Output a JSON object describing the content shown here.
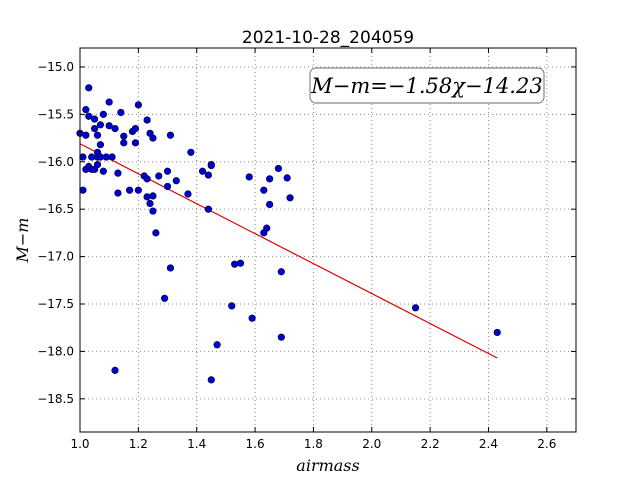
{
  "chart_data": {
    "type": "scatter",
    "title": "2021-10-28_204059",
    "xlabel": "airmass",
    "ylabel": "M−m",
    "xlim": [
      1.0,
      2.7
    ],
    "ylim": [
      -18.85,
      -14.8
    ],
    "grid": true,
    "x_ticks": [
      1.0,
      1.2,
      1.4,
      1.6,
      1.8,
      2.0,
      2.2,
      2.4,
      2.6
    ],
    "x_tick_labels": [
      "1.0",
      "1.2",
      "1.4",
      "1.6",
      "1.8",
      "2.0",
      "2.2",
      "2.4",
      "2.6"
    ],
    "y_ticks": [
      -15.0,
      -15.5,
      -16.0,
      -16.5,
      -17.0,
      -17.5,
      -18.0,
      -18.5
    ],
    "y_tick_labels": [
      "−15.0",
      "−15.5",
      "−16.0",
      "−16.5",
      "−17.0",
      "−17.5",
      "−18.0",
      "−18.5"
    ],
    "annotation": {
      "text": "M−m=−1.58χ−14.23",
      "position": "top-right"
    },
    "colors": {
      "points": "#0000cc",
      "fit_line": "#e00000"
    },
    "fit": {
      "slope": -1.58,
      "intercept": -14.23,
      "x_range": [
        1.0,
        2.43
      ]
    },
    "points": [
      {
        "x": 1.0,
        "y": -15.7
      },
      {
        "x": 1.01,
        "y": -16.3
      },
      {
        "x": 1.01,
        "y": -15.95
      },
      {
        "x": 1.02,
        "y": -15.72
      },
      {
        "x": 1.02,
        "y": -16.08
      },
      {
        "x": 1.02,
        "y": -15.45
      },
      {
        "x": 1.03,
        "y": -15.22
      },
      {
        "x": 1.03,
        "y": -15.52
      },
      {
        "x": 1.03,
        "y": -16.05
      },
      {
        "x": 1.04,
        "y": -15.95
      },
      {
        "x": 1.04,
        "y": -16.08
      },
      {
        "x": 1.05,
        "y": -15.55
      },
      {
        "x": 1.05,
        "y": -16.08
      },
      {
        "x": 1.05,
        "y": -15.65
      },
      {
        "x": 1.06,
        "y": -15.9
      },
      {
        "x": 1.06,
        "y": -15.95
      },
      {
        "x": 1.06,
        "y": -16.03
      },
      {
        "x": 1.06,
        "y": -15.72
      },
      {
        "x": 1.07,
        "y": -15.82
      },
      {
        "x": 1.07,
        "y": -15.95
      },
      {
        "x": 1.07,
        "y": -15.61
      },
      {
        "x": 1.08,
        "y": -15.5
      },
      {
        "x": 1.08,
        "y": -16.1
      },
      {
        "x": 1.09,
        "y": -15.95
      },
      {
        "x": 1.1,
        "y": -15.37
      },
      {
        "x": 1.1,
        "y": -15.62
      },
      {
        "x": 1.11,
        "y": -15.95
      },
      {
        "x": 1.12,
        "y": -15.65
      },
      {
        "x": 1.12,
        "y": -18.2
      },
      {
        "x": 1.13,
        "y": -16.33
      },
      {
        "x": 1.13,
        "y": -16.12
      },
      {
        "x": 1.14,
        "y": -15.48
      },
      {
        "x": 1.15,
        "y": -15.73
      },
      {
        "x": 1.15,
        "y": -15.8
      },
      {
        "x": 1.17,
        "y": -16.3
      },
      {
        "x": 1.18,
        "y": -15.68
      },
      {
        "x": 1.19,
        "y": -15.65
      },
      {
        "x": 1.19,
        "y": -15.8
      },
      {
        "x": 1.2,
        "y": -15.4
      },
      {
        "x": 1.2,
        "y": -16.3
      },
      {
        "x": 1.22,
        "y": -16.15
      },
      {
        "x": 1.23,
        "y": -16.18
      },
      {
        "x": 1.23,
        "y": -16.37
      },
      {
        "x": 1.23,
        "y": -15.56
      },
      {
        "x": 1.24,
        "y": -15.7
      },
      {
        "x": 1.24,
        "y": -16.44
      },
      {
        "x": 1.25,
        "y": -16.36
      },
      {
        "x": 1.25,
        "y": -15.75
      },
      {
        "x": 1.25,
        "y": -16.52
      },
      {
        "x": 1.26,
        "y": -16.75
      },
      {
        "x": 1.27,
        "y": -16.15
      },
      {
        "x": 1.29,
        "y": -17.44
      },
      {
        "x": 1.3,
        "y": -16.1
      },
      {
        "x": 1.3,
        "y": -16.26
      },
      {
        "x": 1.31,
        "y": -15.72
      },
      {
        "x": 1.31,
        "y": -17.12
      },
      {
        "x": 1.33,
        "y": -16.2
      },
      {
        "x": 1.37,
        "y": -16.34
      },
      {
        "x": 1.38,
        "y": -15.9
      },
      {
        "x": 1.42,
        "y": -16.1
      },
      {
        "x": 1.44,
        "y": -16.14
      },
      {
        "x": 1.44,
        "y": -16.5
      },
      {
        "x": 1.45,
        "y": -16.03
      },
      {
        "x": 1.45,
        "y": -16.04
      },
      {
        "x": 1.45,
        "y": -18.3
      },
      {
        "x": 1.47,
        "y": -17.93
      },
      {
        "x": 1.52,
        "y": -17.52
      },
      {
        "x": 1.53,
        "y": -17.08
      },
      {
        "x": 1.55,
        "y": -17.07
      },
      {
        "x": 1.58,
        "y": -16.16
      },
      {
        "x": 1.59,
        "y": -17.65
      },
      {
        "x": 1.63,
        "y": -16.3
      },
      {
        "x": 1.63,
        "y": -16.75
      },
      {
        "x": 1.64,
        "y": -16.7
      },
      {
        "x": 1.65,
        "y": -16.18
      },
      {
        "x": 1.65,
        "y": -16.45
      },
      {
        "x": 1.68,
        "y": -16.07
      },
      {
        "x": 1.69,
        "y": -17.16
      },
      {
        "x": 1.69,
        "y": -17.85
      },
      {
        "x": 1.71,
        "y": -16.17
      },
      {
        "x": 1.72,
        "y": -16.38
      },
      {
        "x": 2.15,
        "y": -17.54
      },
      {
        "x": 2.43,
        "y": -17.8
      }
    ]
  }
}
